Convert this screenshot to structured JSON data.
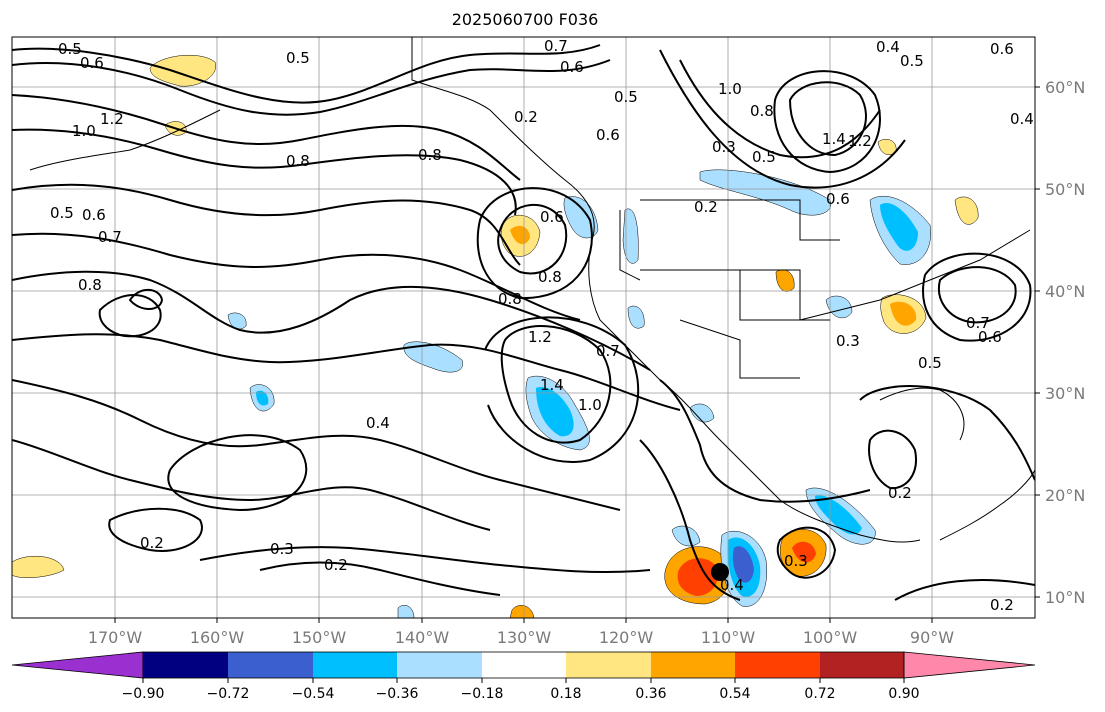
{
  "title": "2025060700 F036",
  "map": {
    "lat_ticks": [
      "60°N",
      "50°N",
      "40°N",
      "30°N",
      "20°N",
      "10°N"
    ],
    "lon_ticks": [
      "170°W",
      "160°W",
      "150°W",
      "140°W",
      "130°W",
      "120°W",
      "110°W",
      "100°W",
      "90°W"
    ],
    "contour_labels": [
      "0.5",
      "0.6",
      "0.5",
      "0.7",
      "0.6",
      "0.4",
      "0.5",
      "0.6",
      "1.2",
      "1.0",
      "0.8",
      "0.8",
      "0.2",
      "0.5",
      "0.6",
      "1.0",
      "0.8",
      "0.5",
      "0.3",
      "1.4",
      "1.2",
      "0.4",
      "0.5",
      "0.6",
      "0.7",
      "0.8",
      "0.6",
      "0.2",
      "0.6",
      "0.8",
      "0.8",
      "1.2",
      "0.7",
      "1.4",
      "1.0",
      "0.4",
      "0.3",
      "0.5",
      "0.7",
      "0.6",
      "0.2",
      "0.2",
      "0.3",
      "0.2",
      "0.3",
      "0.4",
      "0.2"
    ]
  },
  "colorbar": {
    "colors": [
      "#9b30d0",
      "#000080",
      "#3b5fcf",
      "#00bfff",
      "#aadfff",
      "#ffffff",
      "#ffe680",
      "#ffa500",
      "#ff4000",
      "#b22222",
      "#ff88aa"
    ],
    "tick_labels": [
      "−0.90",
      "−0.72",
      "−0.54",
      "−0.36",
      "−0.18",
      "0.18",
      "0.36",
      "0.54",
      "0.72",
      "0.90"
    ]
  }
}
